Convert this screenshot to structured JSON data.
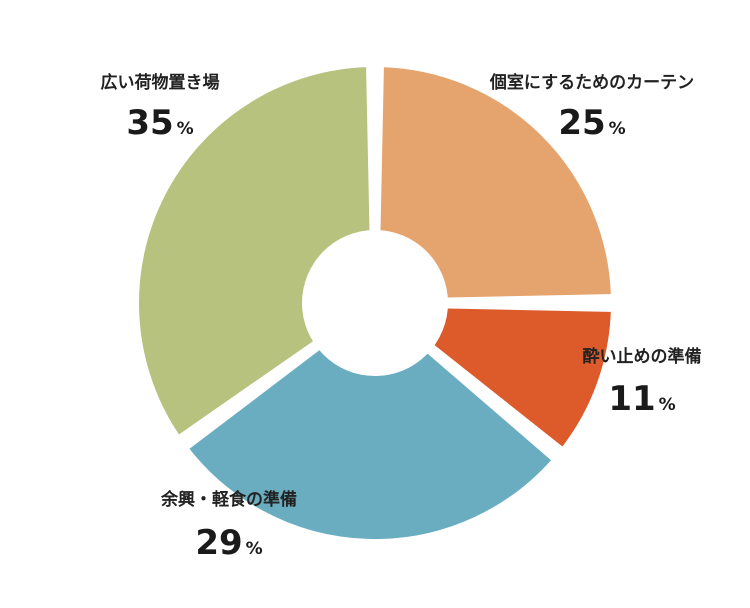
{
  "chart_data": {
    "type": "pie",
    "donut": true,
    "unit": "%",
    "categories": [
      "個室にするためのカーテン",
      "酔い止めの準備",
      "余興・軽食の準備",
      "広い荷物置き場"
    ],
    "values": [
      25,
      11,
      29,
      35
    ],
    "value_labels": [
      "25",
      "11",
      "29",
      "35"
    ],
    "colors": [
      "#E5A46E",
      "#DD5A2B",
      "#6AADC0",
      "#B6C27D"
    ],
    "title": "",
    "legend": "none"
  }
}
